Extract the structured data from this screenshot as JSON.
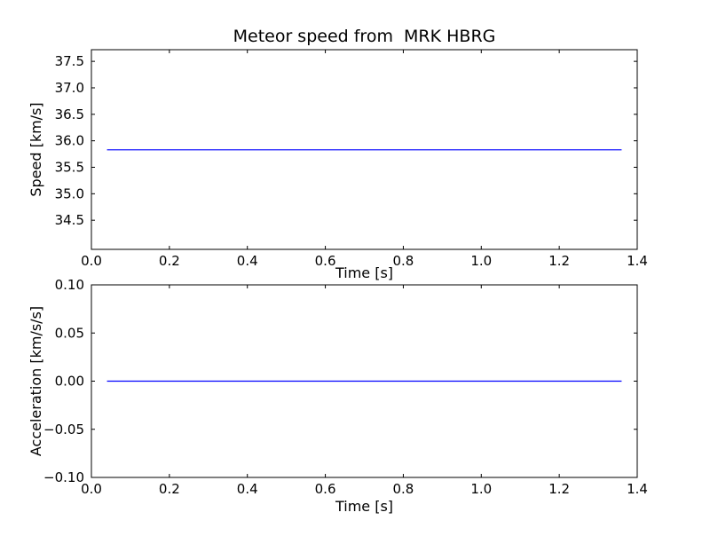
{
  "chart_data": [
    {
      "type": "line",
      "title": "Meteor speed from  MRK HBRG",
      "xlabel": "Time [s]",
      "ylabel": "Speed [km/s]",
      "xlim": [
        0.0,
        1.4
      ],
      "ylim": [
        33.95,
        37.72
      ],
      "xticks": [
        0.0,
        0.2,
        0.4,
        0.6,
        0.8,
        1.0,
        1.2,
        1.4
      ],
      "xticklabels": [
        "0.0",
        "0.2",
        "0.4",
        "0.6",
        "0.8",
        "1.0",
        "1.2",
        "1.4"
      ],
      "yticks": [
        34.5,
        35.0,
        35.5,
        36.0,
        36.5,
        37.0,
        37.5
      ],
      "yticklabels": [
        "34.5",
        "35.0",
        "35.5",
        "36.0",
        "36.5",
        "37.0",
        "37.5"
      ],
      "grid": false,
      "series": [
        {
          "name": "speed",
          "color": "#0000ff",
          "x": [
            0.04,
            1.36
          ],
          "y": [
            35.83,
            35.83
          ]
        }
      ]
    },
    {
      "type": "line",
      "title": "",
      "xlabel": "Time [s]",
      "ylabel": "Acceleration [km/s/s]",
      "xlim": [
        0.0,
        1.4
      ],
      "ylim": [
        -0.1,
        0.1
      ],
      "xticks": [
        0.0,
        0.2,
        0.4,
        0.6,
        0.8,
        1.0,
        1.2,
        1.4
      ],
      "xticklabels": [
        "0.0",
        "0.2",
        "0.4",
        "0.6",
        "0.8",
        "1.0",
        "1.2",
        "1.4"
      ],
      "yticks": [
        -0.1,
        -0.05,
        0.0,
        0.05,
        0.1
      ],
      "yticklabels": [
        "−0.10",
        "−0.05",
        "0.00",
        "0.05",
        "0.10"
      ],
      "grid": false,
      "series": [
        {
          "name": "acceleration",
          "color": "#0000ff",
          "x": [
            0.04,
            1.36
          ],
          "y": [
            0.0,
            0.0
          ]
        }
      ]
    }
  ],
  "colors": {
    "line": "#0000ff",
    "axes": "#000000",
    "background": "#ffffff"
  }
}
